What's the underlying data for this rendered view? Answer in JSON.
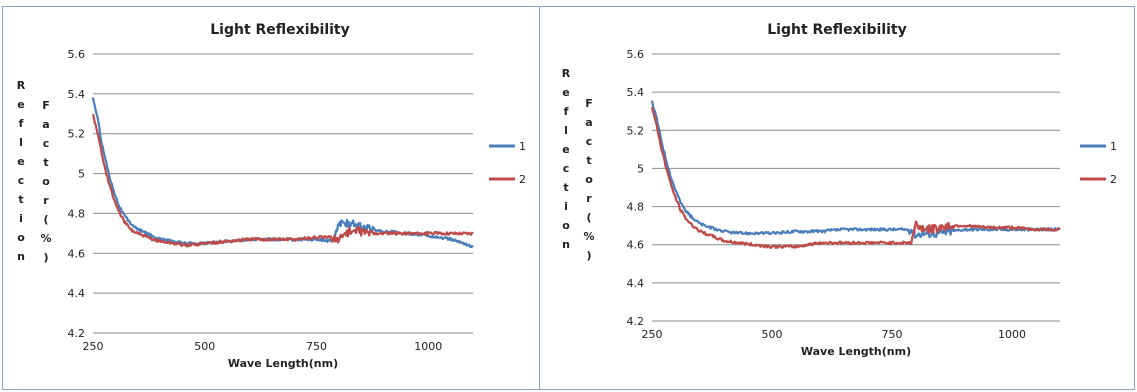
{
  "colors": {
    "series_1": "#4a7ebb",
    "series_2": "#be4b48",
    "grid": "#8c8c8c",
    "panel_border": "#86a0c2"
  },
  "chart_data": [
    {
      "type": "line",
      "title": "Light Reflexibility",
      "xlabel": "Wave Length(nm)",
      "ylabel_1": "Reflection",
      "ylabel_2": "Factor",
      "ylabel_3": "(%)",
      "xlim": [
        250,
        1100
      ],
      "ylim": [
        4.2,
        5.6
      ],
      "xticks": [
        "250",
        "500",
        "750",
        "1000"
      ],
      "xtick_values": [
        250,
        500,
        750,
        1000
      ],
      "yticks": [
        "4.2",
        "4.4",
        "4.6",
        "4.8",
        "5",
        "5.2",
        "5.4",
        "5.6"
      ],
      "ytick_values": [
        4.2,
        4.4,
        4.6,
        4.8,
        5.0,
        5.2,
        5.4,
        5.6
      ],
      "grid": "horizontal",
      "legend": "right",
      "series": [
        {
          "name": "1",
          "x": [
            250,
            260,
            270,
            280,
            290,
            300,
            310,
            320,
            330,
            340,
            350,
            370,
            400,
            430,
            460,
            500,
            550,
            600,
            650,
            700,
            750,
            790,
            800,
            810,
            830,
            850,
            870,
            900,
            950,
            1000,
            1050,
            1080,
            1100
          ],
          "y": [
            5.38,
            5.28,
            5.15,
            5.05,
            4.96,
            4.89,
            4.83,
            4.79,
            4.76,
            4.74,
            4.72,
            4.7,
            4.67,
            4.66,
            4.65,
            4.65,
            4.66,
            4.67,
            4.67,
            4.67,
            4.67,
            4.66,
            4.76,
            4.74,
            4.76,
            4.73,
            4.72,
            4.71,
            4.7,
            4.69,
            4.67,
            4.65,
            4.63
          ]
        },
        {
          "name": "2",
          "x": [
            250,
            260,
            270,
            280,
            290,
            300,
            310,
            320,
            330,
            340,
            350,
            370,
            400,
            430,
            460,
            500,
            550,
            600,
            650,
            700,
            750,
            790,
            800,
            810,
            830,
            850,
            870,
            900,
            950,
            1000,
            1050,
            1100
          ],
          "y": [
            5.3,
            5.2,
            5.1,
            5.0,
            4.92,
            4.85,
            4.8,
            4.76,
            4.73,
            4.71,
            4.7,
            4.68,
            4.66,
            4.65,
            4.64,
            4.65,
            4.66,
            4.67,
            4.67,
            4.67,
            4.68,
            4.68,
            4.66,
            4.7,
            4.71,
            4.71,
            4.7,
            4.7,
            4.7,
            4.7,
            4.7,
            4.7
          ]
        }
      ]
    },
    {
      "type": "line",
      "title": "Light Reflexibility",
      "xlabel": "Wave Length(nm)",
      "ylabel_1": "Reflection",
      "ylabel_2": "Factor",
      "ylabel_3": "(%)",
      "xlim": [
        250,
        1100
      ],
      "ylim": [
        4.2,
        5.6
      ],
      "xticks": [
        "250",
        "500",
        "750",
        "1000"
      ],
      "xtick_values": [
        250,
        500,
        750,
        1000
      ],
      "yticks": [
        "4.2",
        "4.4",
        "4.6",
        "4.8",
        "5",
        "5.2",
        "5.4",
        "5.6"
      ],
      "ytick_values": [
        4.2,
        4.4,
        4.6,
        4.8,
        5.0,
        5.2,
        5.4,
        5.6
      ],
      "grid": "horizontal",
      "legend": "right",
      "series": [
        {
          "name": "1",
          "x": [
            250,
            260,
            270,
            280,
            290,
            300,
            310,
            320,
            330,
            340,
            350,
            370,
            400,
            430,
            460,
            500,
            550,
            600,
            650,
            700,
            750,
            790,
            800,
            810,
            830,
            850,
            870,
            900,
            950,
            1000,
            1050,
            1100
          ],
          "y": [
            5.35,
            5.26,
            5.14,
            5.04,
            4.95,
            4.88,
            4.82,
            4.78,
            4.75,
            4.73,
            4.71,
            4.69,
            4.67,
            4.66,
            4.66,
            4.66,
            4.67,
            4.67,
            4.68,
            4.68,
            4.68,
            4.68,
            4.65,
            4.66,
            4.66,
            4.66,
            4.67,
            4.68,
            4.68,
            4.68,
            4.68,
            4.68
          ]
        },
        {
          "name": "2",
          "x": [
            250,
            260,
            270,
            280,
            290,
            300,
            310,
            320,
            330,
            340,
            350,
            370,
            400,
            430,
            460,
            500,
            550,
            600,
            650,
            700,
            750,
            790,
            800,
            810,
            830,
            850,
            870,
            900,
            950,
            1000,
            1050,
            1100
          ],
          "y": [
            5.32,
            5.22,
            5.1,
            5.0,
            4.91,
            4.84,
            4.78,
            4.74,
            4.71,
            4.69,
            4.67,
            4.65,
            4.62,
            4.61,
            4.6,
            4.59,
            4.59,
            4.61,
            4.61,
            4.61,
            4.61,
            4.61,
            4.71,
            4.69,
            4.68,
            4.69,
            4.7,
            4.7,
            4.69,
            4.69,
            4.68,
            4.68
          ]
        }
      ]
    }
  ]
}
